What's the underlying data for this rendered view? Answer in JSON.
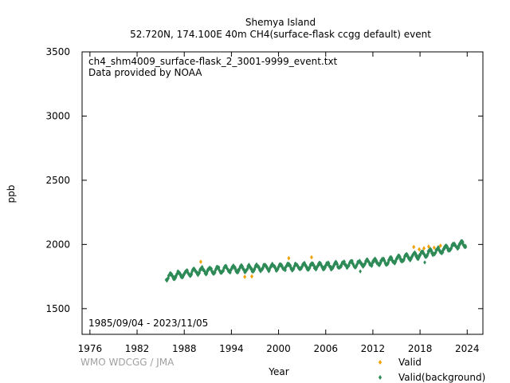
{
  "chart_data": {
    "type": "scatter",
    "title": "Shemya Island",
    "subtitle": "52.720N, 174.100E 40m    CH4(surface-flask ccgg default) event",
    "file_label": "ch4_shm4009_surface-flask_2_3001-9999_event.txt",
    "provider": "Data provided by NOAA",
    "date_range": "1985/09/04 - 2023/11/05",
    "credit": "WMO WDCGG / JMA",
    "xlabel": "Year",
    "ylabel": "ppb",
    "xlim": [
      1975,
      2026
    ],
    "ylim": [
      1300,
      3500
    ],
    "x_ticks": [
      1976,
      1982,
      1988,
      1994,
      2000,
      2006,
      2012,
      2018,
      2024
    ],
    "y_ticks": [
      1500,
      2000,
      2500,
      3000,
      3500
    ],
    "grid": false,
    "legend_position": "bottom-right",
    "colors": {
      "valid": "#f0a000",
      "background": "#2e8b57"
    },
    "series": [
      {
        "name": "Valid",
        "marker": "diamond",
        "points": [
          [
            1990.1,
            1865
          ],
          [
            1995.7,
            1748
          ],
          [
            1996.6,
            1751
          ],
          [
            2001.3,
            1893
          ],
          [
            2004.2,
            1900
          ],
          [
            2017.2,
            1980
          ],
          [
            2017.9,
            1962
          ],
          [
            2018.5,
            1970
          ],
          [
            2019.1,
            1983
          ],
          [
            2019.8,
            1975
          ],
          [
            2020.6,
            1990
          ]
        ]
      },
      {
        "name": "Valid(background)",
        "marker": "diamond",
        "segments": [
          {
            "x": [
              1985.7,
              1990
            ],
            "y": [
              1745,
              1795
            ]
          },
          {
            "x": [
              1990,
              2000
            ],
            "y": [
              1795,
              1825
            ]
          },
          {
            "x": [
              2000,
              2007
            ],
            "y": [
              1825,
              1835
            ]
          },
          {
            "x": [
              2007,
              2014
            ],
            "y": [
              1835,
              1870
            ]
          },
          {
            "x": [
              2014,
              2020
            ],
            "y": [
              1870,
              1945
            ]
          },
          {
            "x": [
              2020,
              2023.85
            ],
            "y": [
              1945,
              2010
            ]
          }
        ],
        "seasonal_amplitude": 22,
        "outliers": [
          [
            2010.4,
            1790
          ],
          [
            2018.6,
            1860
          ]
        ]
      }
    ]
  }
}
